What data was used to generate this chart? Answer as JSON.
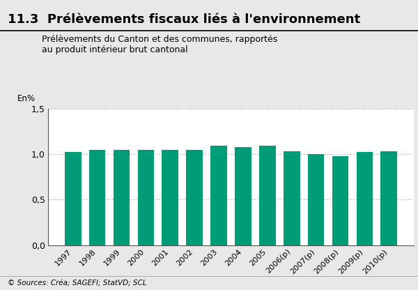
{
  "title_number": "11.3",
  "title_text": "Prélèvements fiscaux liés à l'environnement",
  "subtitle": "Prélèvements du Canton et des communes, rapportés\nau produit intérieur brut cantonal",
  "ylabel": "En%",
  "source": "© Sources: Créa; SAGEFI; StatVD; SCL",
  "categories": [
    "1997",
    "1998",
    "1999",
    "2000",
    "2001",
    "2002",
    "2003",
    "2004",
    "2005",
    "2006(p)",
    "2007(p)",
    "2008(p)",
    "2009(p)",
    "2010(p)"
  ],
  "values": [
    1.025,
    1.045,
    1.045,
    1.045,
    1.05,
    1.045,
    1.095,
    1.08,
    1.095,
    1.03,
    1.005,
    0.98,
    1.025,
    1.03
  ],
  "bar_color": "#009B77",
  "ylim": [
    0,
    1.5
  ],
  "yticks": [
    0.0,
    0.5,
    1.0,
    1.5
  ],
  "ytick_labels": [
    "0,0",
    "0,5",
    "1,0",
    "1,5"
  ],
  "background_color": "#e8e8e8",
  "plot_bg_color": "#ffffff"
}
